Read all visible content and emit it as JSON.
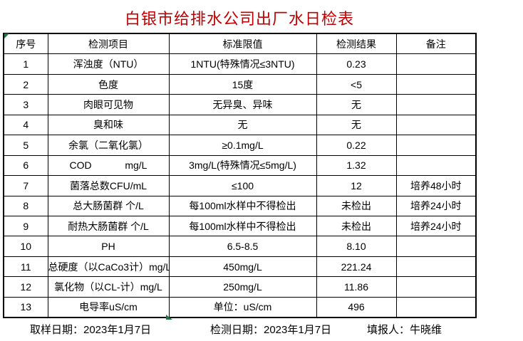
{
  "title": "白银市给排水公司出厂水日检表",
  "colors": {
    "title_red": "#c00000",
    "marker_green": "#217346",
    "grid_border": "#000000"
  },
  "table": {
    "headers": [
      "序号",
      "检测项目",
      "标准限值",
      "检测结果",
      "备注"
    ],
    "rows": [
      [
        "1",
        "浑浊度（NTU）",
        "1NTU(特殊情况≤3NTU)",
        "0.23",
        ""
      ],
      [
        "2",
        "色度",
        "15度",
        "<5",
        ""
      ],
      [
        "3",
        "肉眼可见物",
        "无异臭、异味",
        "无",
        ""
      ],
      [
        "4",
        "臭和味",
        "无",
        "无",
        ""
      ],
      [
        "5",
        "余氯（二氧化氯）",
        "≥0.1mg/L",
        "0.22",
        ""
      ],
      [
        "6",
        "COD            mg/L",
        "3mg/L(特殊情况≤5mg/L)",
        "1.32",
        ""
      ],
      [
        "7",
        "菌落总数CFU/mL",
        "≤100",
        "12",
        "培养48小时"
      ],
      [
        "8",
        "总大肠菌群 个/L",
        "每100ml水样中不得检出",
        "未检出",
        "培养24小时"
      ],
      [
        "9",
        "耐热大肠菌群 个/L",
        "每100ml水样中不得检出",
        "未检出",
        "培养24小时"
      ],
      [
        "10",
        "PH",
        "6.5-8.5",
        "8.10",
        ""
      ],
      [
        "11",
        "总硬度（以CaCo3计）mg/L",
        "450mg/L",
        "221.24",
        ""
      ],
      [
        "12",
        "氯化物（以CL-计）mg/L",
        "250mg/L",
        "11.86",
        ""
      ],
      [
        "13",
        "电导率uS/cm",
        "单位：uS/cm",
        "496",
        ""
      ]
    ]
  },
  "footer": {
    "sampling_date": "取样日期：2023年1月7日",
    "test_date": "检测日期：2023年1月7日",
    "reporter": "填报人：牛晓维"
  }
}
